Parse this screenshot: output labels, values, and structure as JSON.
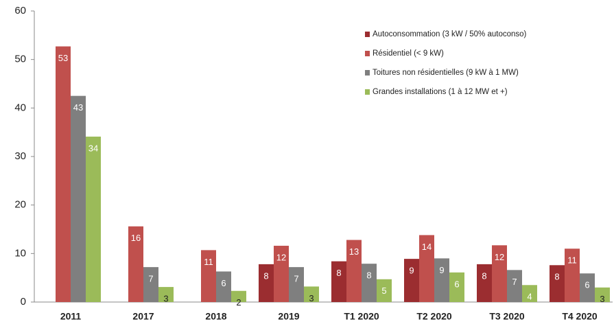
{
  "chart_data": {
    "type": "bar",
    "categories": [
      "2011",
      "2017",
      "2018",
      "2019",
      "T1 2020",
      "T2 2020",
      "T3 2020",
      "T4 2020"
    ],
    "series": [
      {
        "name": "Autoconsommation (3 kW / 50% autoconso)",
        "color": "#9b2d30",
        "values": [
          null,
          null,
          null,
          7.8,
          8.4,
          8.9,
          7.8,
          7.6
        ],
        "value_labels": [
          null,
          null,
          null,
          "8",
          "8",
          "9",
          "8",
          "8"
        ]
      },
      {
        "name": "Résidentiel (< 9 kW)",
        "color": "#c0504d",
        "values": [
          52.7,
          15.6,
          10.7,
          11.6,
          12.8,
          13.8,
          11.7,
          11.0
        ],
        "value_labels": [
          "53",
          "16",
          "11",
          "12",
          "13",
          "14",
          "12",
          "11"
        ]
      },
      {
        "name": "Toitures non résidentielles (9 kW à 1 MW)",
        "color": "#7f7f7f",
        "values": [
          42.5,
          7.2,
          6.3,
          7.2,
          7.9,
          9.0,
          6.6,
          5.9
        ],
        "value_labels": [
          "43",
          "7",
          "6",
          "7",
          "8",
          "9",
          "7",
          "6"
        ]
      },
      {
        "name": "Grandes installations (1 à 12 MW et +)",
        "color": "#9bbb59",
        "values": [
          34.1,
          3.1,
          2.3,
          3.2,
          4.7,
          6.1,
          3.5,
          3.0
        ],
        "value_labels": [
          "34",
          "3",
          "2",
          "3",
          "5",
          "6",
          "4",
          "3"
        ]
      }
    ],
    "ylim": [
      0,
      60
    ],
    "yticks": [
      0,
      10,
      20,
      30,
      40,
      50,
      60
    ],
    "grid": false,
    "legend": "upper right"
  }
}
